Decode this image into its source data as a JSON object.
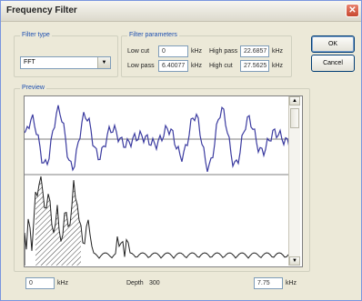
{
  "window": {
    "title": "Frequency Filter",
    "close_glyph": "✕"
  },
  "filter_type": {
    "label": "Filter type",
    "value": "FFT",
    "arrow": "▼"
  },
  "filter_parameters": {
    "label": "Filter parameters",
    "low_cut_label": "Low cut",
    "low_cut_value": "0",
    "low_cut_unit": "kHz",
    "high_pass_label": "High pass",
    "high_pass_value": "22.6857",
    "high_pass_unit": "kHz",
    "low_pass_label": "Low pass",
    "low_pass_value": "6.40077",
    "low_pass_unit": "kHz",
    "high_cut_label": "High cut",
    "high_cut_value": "27.5625",
    "high_cut_unit": "kHz"
  },
  "buttons": {
    "ok": "OK",
    "cancel": "Cancel"
  },
  "preview": {
    "label": "Preview",
    "scroll_up": "▲",
    "scroll_down": "▼",
    "left_value": "0",
    "left_unit": "kHz",
    "depth_label": "Depth",
    "depth_value": "300",
    "right_value": "7.75",
    "right_unit": "kHz"
  },
  "colors": {
    "waveform": "#3b3ba0",
    "spectrum": "#222222",
    "accent": "#1d4fb0"
  }
}
